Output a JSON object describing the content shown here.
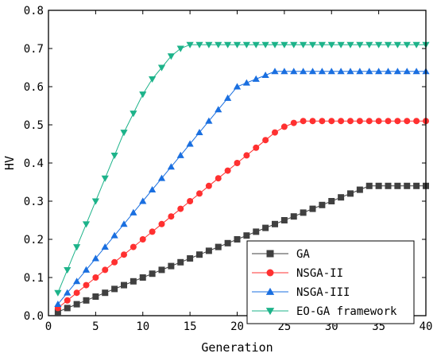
{
  "chart_data": {
    "type": "line",
    "xlabel": "Generation",
    "ylabel": "HV",
    "xlim": [
      0,
      40
    ],
    "ylim": [
      0,
      0.8
    ],
    "xticks": [
      0,
      5,
      10,
      15,
      20,
      25,
      30,
      35,
      40
    ],
    "yticks": [
      0,
      0.1,
      0.2,
      0.3,
      0.4,
      0.5,
      0.6,
      0.7,
      0.8
    ],
    "grid": false,
    "legend_position": "bottom-right",
    "series": [
      {
        "name": "GA",
        "color": "#404040",
        "marker": "square",
        "x": [
          1,
          2,
          3,
          4,
          5,
          6,
          7,
          8,
          9,
          10,
          11,
          12,
          13,
          14,
          15,
          16,
          17,
          18,
          19,
          20,
          21,
          22,
          23,
          24,
          25,
          26,
          27,
          28,
          29,
          30,
          31,
          32,
          33,
          34,
          35,
          36,
          37,
          38,
          39,
          40
        ],
        "y": [
          0.01,
          0.02,
          0.03,
          0.04,
          0.05,
          0.06,
          0.07,
          0.08,
          0.09,
          0.1,
          0.11,
          0.12,
          0.13,
          0.14,
          0.15,
          0.16,
          0.17,
          0.18,
          0.19,
          0.2,
          0.21,
          0.22,
          0.23,
          0.24,
          0.25,
          0.26,
          0.27,
          0.28,
          0.29,
          0.3,
          0.31,
          0.32,
          0.33,
          0.34,
          0.34,
          0.34,
          0.34,
          0.34,
          0.34,
          0.34
        ]
      },
      {
        "name": "NSGA-II",
        "color": "#ff3030",
        "marker": "circle",
        "x": [
          1,
          2,
          3,
          4,
          5,
          6,
          7,
          8,
          9,
          10,
          11,
          12,
          13,
          14,
          15,
          16,
          17,
          18,
          19,
          20,
          21,
          22,
          23,
          24,
          25,
          26,
          27,
          28,
          29,
          30,
          31,
          32,
          33,
          34,
          35,
          36,
          37,
          38,
          39,
          40
        ],
        "y": [
          0.02,
          0.04,
          0.06,
          0.08,
          0.1,
          0.12,
          0.14,
          0.16,
          0.18,
          0.2,
          0.22,
          0.24,
          0.26,
          0.28,
          0.3,
          0.32,
          0.34,
          0.36,
          0.38,
          0.4,
          0.42,
          0.44,
          0.46,
          0.48,
          0.495,
          0.505,
          0.51,
          0.51,
          0.51,
          0.51,
          0.51,
          0.51,
          0.51,
          0.51,
          0.51,
          0.51,
          0.51,
          0.51,
          0.51,
          0.51
        ]
      },
      {
        "name": "NSGA-III",
        "color": "#1a6fe0",
        "marker": "triangle-up",
        "x": [
          1,
          2,
          3,
          4,
          5,
          6,
          7,
          8,
          9,
          10,
          11,
          12,
          13,
          14,
          15,
          16,
          17,
          18,
          19,
          20,
          21,
          22,
          23,
          24,
          25,
          26,
          27,
          28,
          29,
          30,
          31,
          32,
          33,
          34,
          35,
          36,
          37,
          38,
          39,
          40
        ],
        "y": [
          0.03,
          0.06,
          0.09,
          0.12,
          0.15,
          0.18,
          0.21,
          0.24,
          0.27,
          0.3,
          0.33,
          0.36,
          0.39,
          0.42,
          0.45,
          0.48,
          0.51,
          0.54,
          0.57,
          0.6,
          0.61,
          0.62,
          0.63,
          0.64,
          0.64,
          0.64,
          0.64,
          0.64,
          0.64,
          0.64,
          0.64,
          0.64,
          0.64,
          0.64,
          0.64,
          0.64,
          0.64,
          0.64,
          0.64,
          0.64
        ]
      },
      {
        "name": "EO-GA framework",
        "color": "#1db38a",
        "marker": "triangle-down",
        "x": [
          1,
          2,
          3,
          4,
          5,
          6,
          7,
          8,
          9,
          10,
          11,
          12,
          13,
          14,
          15,
          16,
          17,
          18,
          19,
          20,
          21,
          22,
          23,
          24,
          25,
          26,
          27,
          28,
          29,
          30,
          31,
          32,
          33,
          34,
          35,
          36,
          37,
          38,
          39,
          40
        ],
        "y": [
          0.06,
          0.12,
          0.18,
          0.24,
          0.3,
          0.36,
          0.42,
          0.48,
          0.53,
          0.58,
          0.62,
          0.65,
          0.68,
          0.7,
          0.71,
          0.71,
          0.71,
          0.71,
          0.71,
          0.71,
          0.71,
          0.71,
          0.71,
          0.71,
          0.71,
          0.71,
          0.71,
          0.71,
          0.71,
          0.71,
          0.71,
          0.71,
          0.71,
          0.71,
          0.71,
          0.71,
          0.71,
          0.71,
          0.71,
          0.71
        ]
      }
    ]
  }
}
